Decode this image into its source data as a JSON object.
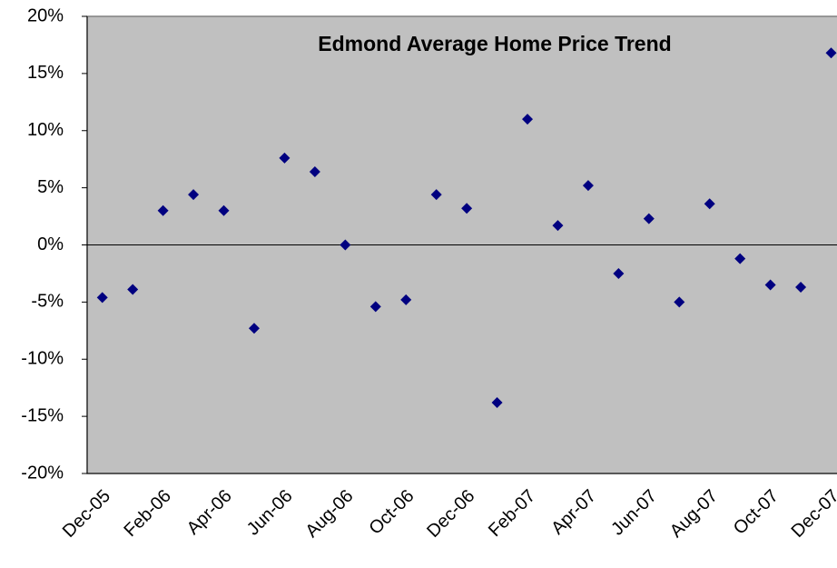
{
  "chart_data": {
    "type": "line",
    "title": "Edmond Average Home Price Trend",
    "categories": [
      "Dec-05",
      null,
      "Feb-06",
      null,
      "Apr-06",
      null,
      "Jun-06",
      null,
      "Aug-06",
      null,
      "Oct-06",
      null,
      "Dec-06",
      null,
      "Feb-07",
      null,
      "Apr-07",
      null,
      "Jun-07",
      null,
      "Aug-07",
      null,
      "Oct-07",
      null,
      "Dec-07"
    ],
    "series": [
      {
        "name": "Edmond",
        "color": "#000080",
        "values": [
          -4.6,
          -3.9,
          3.0,
          4.4,
          3.0,
          -7.3,
          7.6,
          6.4,
          0.0,
          -5.4,
          -4.8,
          4.4,
          3.2,
          -13.8,
          11.0,
          1.7,
          5.2,
          -2.5,
          2.3,
          -5.0,
          3.6,
          -1.2,
          -3.5,
          -3.7,
          16.8
        ]
      }
    ],
    "ylim": [
      -20,
      20
    ],
    "yticks": [
      {
        "value": -20,
        "label": "-20%"
      },
      {
        "value": -15,
        "label": "-15%"
      },
      {
        "value": -10,
        "label": "-10%"
      },
      {
        "value": -5,
        "label": "-5%"
      },
      {
        "value": 0,
        "label": "0%"
      },
      {
        "value": 5,
        "label": "5%"
      },
      {
        "value": 10,
        "label": "10%"
      },
      {
        "value": 15,
        "label": "15%"
      },
      {
        "value": 20,
        "label": "20%"
      }
    ],
    "plot_background": "#c0c0c0",
    "grid": false
  }
}
